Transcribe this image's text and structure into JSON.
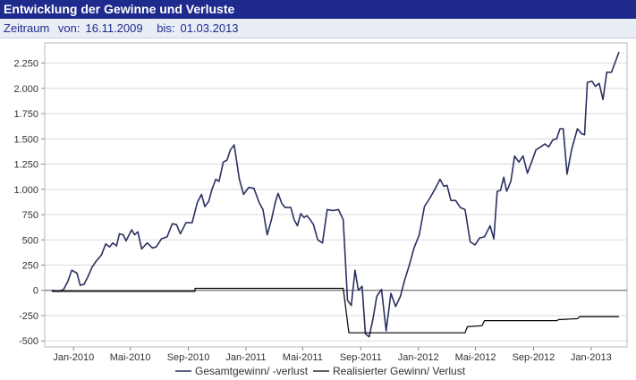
{
  "header": {
    "title": "Entwicklung der Gewinne und Verluste",
    "period_label": "Zeitraum",
    "from_label": "von:",
    "from_date": "16.11.2009",
    "to_label": "bis:",
    "to_date": "01.03.2013"
  },
  "colors": {
    "title_bg": "#1f2b8c",
    "period_bg": "#e9edf6",
    "total_line": "#2b3061",
    "realized_line": "#000000",
    "grid": "#d9d9d9"
  },
  "chart_data": {
    "type": "line",
    "title": "Entwicklung der Gewinne und Verluste",
    "xlabel": "",
    "ylabel": "",
    "x_range": [
      "2009-11-16",
      "2013-03-01"
    ],
    "ylim": [
      -560,
      2450
    ],
    "y_ticks": [
      -500,
      -250,
      0,
      250,
      500,
      750,
      1000,
      1250,
      1500,
      1750,
      2000,
      2250
    ],
    "y_tick_labels": [
      "-500",
      "-250",
      "0",
      "250",
      "500",
      "750",
      "1.000",
      "1.250",
      "1.500",
      "1.750",
      "2.000",
      "2.250"
    ],
    "x_ticks": [
      "2010-01-01",
      "2010-05-01",
      "2010-09-01",
      "2011-01-01",
      "2011-05-01",
      "2011-09-01",
      "2012-01-01",
      "2012-05-01",
      "2012-09-01",
      "2013-01-01"
    ],
    "x_tick_labels": [
      "Jan-2010",
      "Mai-2010",
      "Sep-2010",
      "Jan-2011",
      "Mai-2011",
      "Sep-2011",
      "Jan-2012",
      "Mai-2012",
      "Sep-2012",
      "Jan-2013"
    ],
    "grid": "horizontal",
    "legend_position": "bottom",
    "series": [
      {
        "name": "Gesamtgewinn/ -verlust",
        "points": [
          [
            "2009-11-16",
            0
          ],
          [
            "2009-11-30",
            -10
          ],
          [
            "2009-12-11",
            10
          ],
          [
            "2009-12-20",
            90
          ],
          [
            "2009-12-28",
            200
          ],
          [
            "2010-01-08",
            170
          ],
          [
            "2010-01-15",
            50
          ],
          [
            "2010-01-23",
            60
          ],
          [
            "2010-02-01",
            140
          ],
          [
            "2010-02-09",
            230
          ],
          [
            "2010-02-18",
            290
          ],
          [
            "2010-03-01",
            350
          ],
          [
            "2010-03-10",
            460
          ],
          [
            "2010-03-18",
            430
          ],
          [
            "2010-03-25",
            470
          ],
          [
            "2010-04-02",
            440
          ],
          [
            "2010-04-08",
            560
          ],
          [
            "2010-04-16",
            550
          ],
          [
            "2010-04-22",
            490
          ],
          [
            "2010-05-04",
            600
          ],
          [
            "2010-05-10",
            550
          ],
          [
            "2010-05-17",
            580
          ],
          [
            "2010-05-25",
            410
          ],
          [
            "2010-06-06",
            470
          ],
          [
            "2010-06-17",
            420
          ],
          [
            "2010-06-25",
            430
          ],
          [
            "2010-07-06",
            510
          ],
          [
            "2010-07-18",
            530
          ],
          [
            "2010-07-29",
            660
          ],
          [
            "2010-08-07",
            650
          ],
          [
            "2010-08-15",
            560
          ],
          [
            "2010-08-27",
            670
          ],
          [
            "2010-09-09",
            670
          ],
          [
            "2010-09-20",
            870
          ],
          [
            "2010-09-29",
            950
          ],
          [
            "2010-10-06",
            830
          ],
          [
            "2010-10-14",
            880
          ],
          [
            "2010-10-21",
            1000
          ],
          [
            "2010-10-29",
            1100
          ],
          [
            "2010-11-05",
            1080
          ],
          [
            "2010-11-14",
            1270
          ],
          [
            "2010-11-22",
            1290
          ],
          [
            "2010-11-29",
            1390
          ],
          [
            "2010-12-07",
            1440
          ],
          [
            "2010-12-18",
            1100
          ],
          [
            "2010-12-27",
            950
          ],
          [
            "2011-01-07",
            1020
          ],
          [
            "2011-01-18",
            1010
          ],
          [
            "2011-01-29",
            870
          ],
          [
            "2011-02-06",
            800
          ],
          [
            "2011-02-15",
            550
          ],
          [
            "2011-02-24",
            700
          ],
          [
            "2011-03-04",
            870
          ],
          [
            "2011-03-10",
            960
          ],
          [
            "2011-03-18",
            860
          ],
          [
            "2011-03-25",
            820
          ],
          [
            "2011-04-06",
            820
          ],
          [
            "2011-04-13",
            700
          ],
          [
            "2011-04-20",
            640
          ],
          [
            "2011-04-27",
            760
          ],
          [
            "2011-05-04",
            720
          ],
          [
            "2011-05-10",
            740
          ],
          [
            "2011-05-17",
            700
          ],
          [
            "2011-05-24",
            650
          ],
          [
            "2011-06-02",
            500
          ],
          [
            "2011-06-12",
            470
          ],
          [
            "2011-06-22",
            800
          ],
          [
            "2011-07-04",
            790
          ],
          [
            "2011-07-16",
            800
          ],
          [
            "2011-07-26",
            700
          ],
          [
            "2011-08-04",
            -100
          ],
          [
            "2011-08-12",
            -150
          ],
          [
            "2011-08-20",
            200
          ],
          [
            "2011-08-27",
            0
          ],
          [
            "2011-09-04",
            40
          ],
          [
            "2011-09-11",
            -430
          ],
          [
            "2011-09-19",
            -460
          ],
          [
            "2011-09-27",
            -280
          ],
          [
            "2011-10-05",
            -60
          ],
          [
            "2011-10-15",
            10
          ],
          [
            "2011-10-25",
            -400
          ],
          [
            "2011-11-04",
            -30
          ],
          [
            "2011-11-14",
            -160
          ],
          [
            "2011-11-24",
            -60
          ],
          [
            "2011-12-03",
            100
          ],
          [
            "2011-12-13",
            250
          ],
          [
            "2011-12-23",
            420
          ],
          [
            "2012-01-03",
            550
          ],
          [
            "2012-01-14",
            830
          ],
          [
            "2012-01-25",
            910
          ],
          [
            "2012-02-05",
            1000
          ],
          [
            "2012-02-16",
            1100
          ],
          [
            "2012-02-24",
            1030
          ],
          [
            "2012-03-02",
            1040
          ],
          [
            "2012-03-10",
            890
          ],
          [
            "2012-03-20",
            890
          ],
          [
            "2012-03-30",
            820
          ],
          [
            "2012-04-09",
            800
          ],
          [
            "2012-04-20",
            480
          ],
          [
            "2012-04-30",
            450
          ],
          [
            "2012-05-10",
            520
          ],
          [
            "2012-05-20",
            530
          ],
          [
            "2012-06-01",
            640
          ],
          [
            "2012-06-09",
            510
          ],
          [
            "2012-06-16",
            980
          ],
          [
            "2012-06-23",
            990
          ],
          [
            "2012-06-30",
            1120
          ],
          [
            "2012-07-06",
            980
          ],
          [
            "2012-07-15",
            1080
          ],
          [
            "2012-07-23",
            1330
          ],
          [
            "2012-08-01",
            1270
          ],
          [
            "2012-08-10",
            1330
          ],
          [
            "2012-08-19",
            1160
          ],
          [
            "2012-08-28",
            1270
          ],
          [
            "2012-09-06",
            1390
          ],
          [
            "2012-09-16",
            1420
          ],
          [
            "2012-09-25",
            1450
          ],
          [
            "2012-10-03",
            1420
          ],
          [
            "2012-10-12",
            1490
          ],
          [
            "2012-10-20",
            1500
          ],
          [
            "2012-10-27",
            1600
          ],
          [
            "2012-11-03",
            1600
          ],
          [
            "2012-11-11",
            1150
          ],
          [
            "2012-11-21",
            1400
          ],
          [
            "2012-12-03",
            1600
          ],
          [
            "2012-12-12",
            1550
          ],
          [
            "2012-12-18",
            1540
          ],
          [
            "2012-12-24",
            2060
          ],
          [
            "2013-01-03",
            2070
          ],
          [
            "2013-01-10",
            2020
          ],
          [
            "2013-01-18",
            2050
          ],
          [
            "2013-01-26",
            1890
          ],
          [
            "2013-02-03",
            2160
          ],
          [
            "2013-02-13",
            2160
          ],
          [
            "2013-02-21",
            2260
          ],
          [
            "2013-03-01",
            2360
          ]
        ]
      },
      {
        "name": "Realisierter Gewinn/ Verlust",
        "points": [
          [
            "2009-11-16",
            -10
          ],
          [
            "2010-09-15",
            -10
          ],
          [
            "2010-09-15",
            20
          ],
          [
            "2011-07-26",
            20
          ],
          [
            "2011-08-07",
            -420
          ],
          [
            "2012-04-09",
            -420
          ],
          [
            "2012-04-14",
            -360
          ],
          [
            "2012-05-15",
            -350
          ],
          [
            "2012-05-20",
            -300
          ],
          [
            "2012-10-20",
            -300
          ],
          [
            "2012-10-24",
            -290
          ],
          [
            "2012-12-03",
            -280
          ],
          [
            "2012-12-08",
            -260
          ],
          [
            "2013-03-01",
            -260
          ]
        ]
      }
    ]
  }
}
